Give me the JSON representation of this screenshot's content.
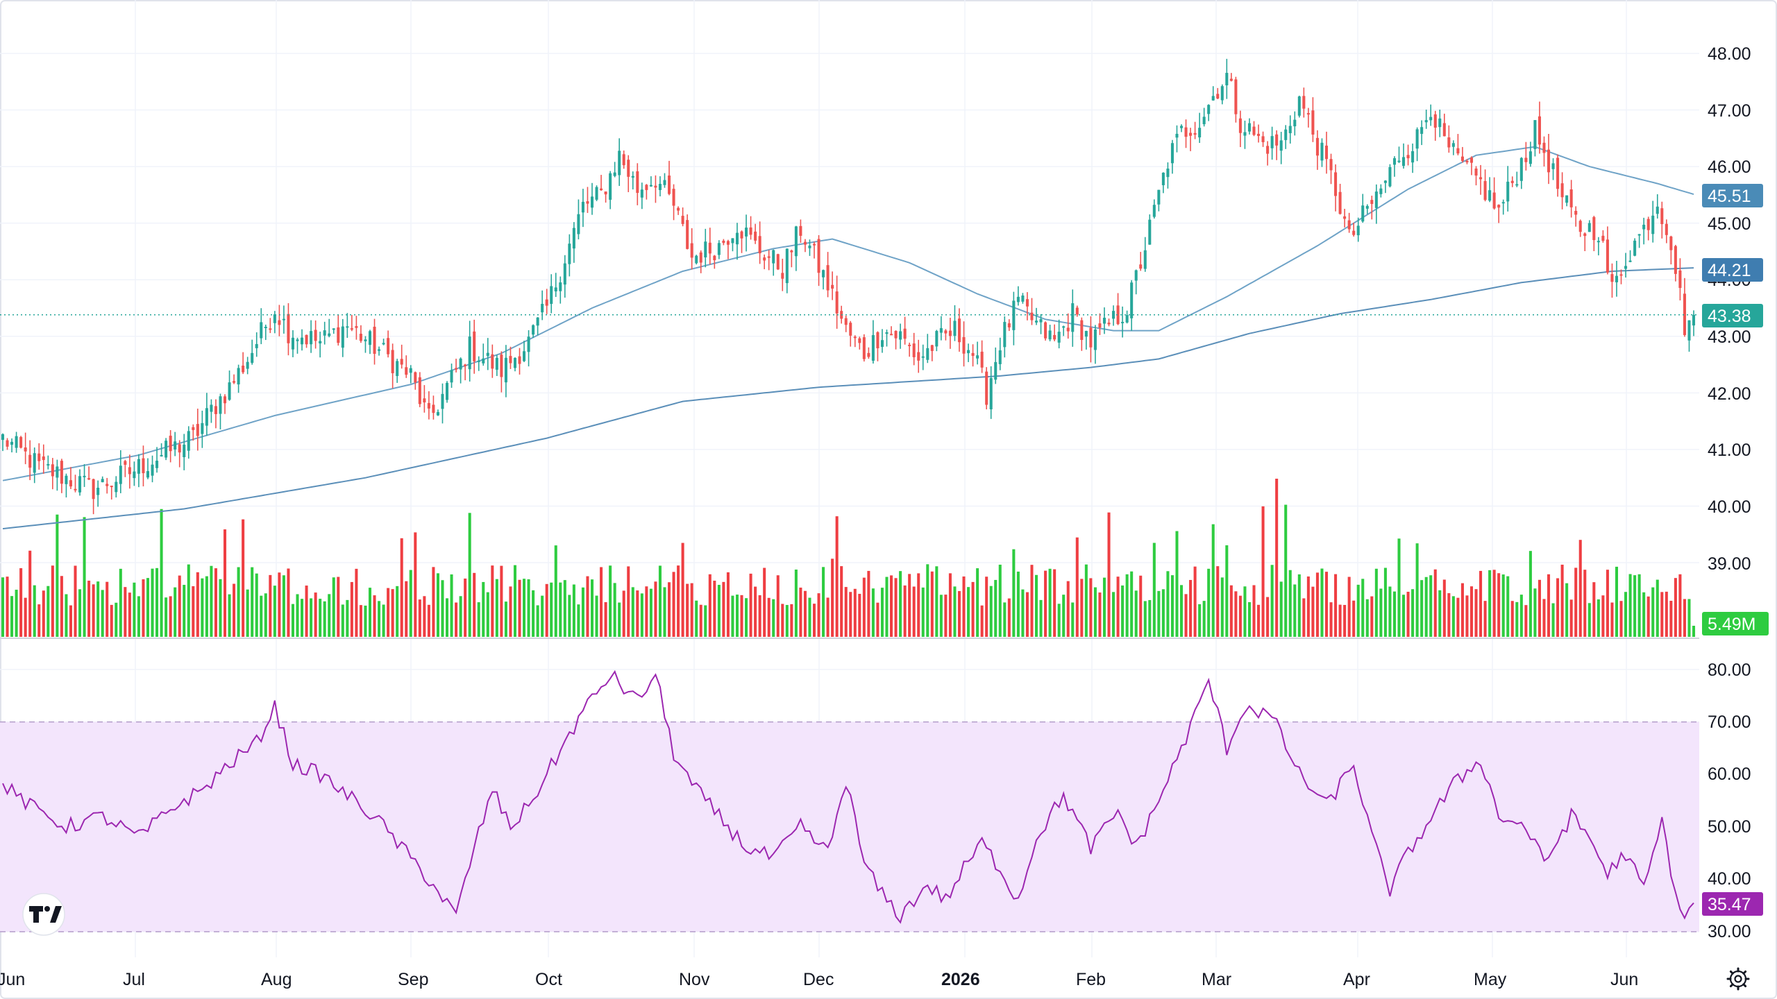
{
  "colors": {
    "up": "#26a69a",
    "down": "#ef5350",
    "vol_up": "#2ecc40",
    "vol_down": "#ef3e42",
    "ma50": "#6fa3c7",
    "ma200": "#5b8fb9",
    "rsi_line": "#9c27b0",
    "rsi_band": "#f3e5fc",
    "last_price_badge": "#26a69a",
    "ma50_badge": "#4a8bb7",
    "ma200_badge": "#3f7db0",
    "volume_badge": "#2ecc40",
    "rsi_badge": "#9c27b0",
    "grid": "#f0f3fa"
  },
  "price_axis": {
    "ticks": [
      "48.00",
      "47.00",
      "46.00",
      "45.00",
      "44.00",
      "43.00",
      "42.00",
      "41.00",
      "40.00",
      "39.00"
    ]
  },
  "rsi_axis": {
    "ticks": [
      "80.00",
      "70.00",
      "60.00",
      "50.00",
      "40.00",
      "30.00"
    ]
  },
  "badges": {
    "ma50": "45.51",
    "ma200": "44.21",
    "last_price": "43.38",
    "volume": "5.49M",
    "rsi": "35.47"
  },
  "time_axis": {
    "labels": [
      {
        "text": "Jun",
        "bold": false
      },
      {
        "text": "Jul",
        "bold": false
      },
      {
        "text": "Aug",
        "bold": false
      },
      {
        "text": "Sep",
        "bold": false
      },
      {
        "text": "Oct",
        "bold": false
      },
      {
        "text": "Nov",
        "bold": false
      },
      {
        "text": "Dec",
        "bold": false
      },
      {
        "text": "2026",
        "bold": true
      },
      {
        "text": "Feb",
        "bold": false
      },
      {
        "text": "Mar",
        "bold": false
      },
      {
        "text": "Apr",
        "bold": false
      },
      {
        "text": "May",
        "bold": false
      },
      {
        "text": "Jun",
        "bold": false
      }
    ]
  },
  "icons": {
    "logo": "tradingview-logo-icon",
    "settings": "settings-gear-icon"
  },
  "chart_data": {
    "type": "candlestick",
    "title": "",
    "x_range": [
      "2025-06",
      "2026-06"
    ],
    "price_ylim": [
      39.0,
      48.0
    ],
    "rsi_ylim": [
      30,
      80
    ],
    "rsi_band": [
      30,
      70
    ],
    "last_price": 43.38,
    "ma50_last": 45.51,
    "ma200_last": 44.21,
    "volume_last": "5.49M",
    "rsi_last": 35.47,
    "price_keypoints": [
      [
        0,
        41.2
      ],
      [
        8,
        40.7
      ],
      [
        14,
        40.5
      ],
      [
        20,
        40.3
      ],
      [
        28,
        40.6
      ],
      [
        35,
        40.9
      ],
      [
        42,
        41.2
      ],
      [
        46,
        41.7
      ],
      [
        50,
        42.1
      ],
      [
        54,
        42.6
      ],
      [
        60,
        43.5
      ],
      [
        63,
        43.1
      ],
      [
        70,
        42.9
      ],
      [
        76,
        43.2
      ],
      [
        84,
        42.7
      ],
      [
        90,
        42.3
      ],
      [
        94,
        41.5
      ],
      [
        98,
        42.1
      ],
      [
        103,
        42.8
      ],
      [
        110,
        42.4
      ],
      [
        116,
        42.9
      ],
      [
        120,
        43.5
      ],
      [
        124,
        44.4
      ],
      [
        128,
        45.3
      ],
      [
        132,
        45.5
      ],
      [
        136,
        46.2
      ],
      [
        140,
        45.6
      ],
      [
        144,
        45.8
      ],
      [
        148,
        45.3
      ],
      [
        152,
        44.4
      ],
      [
        158,
        44.6
      ],
      [
        162,
        45.0
      ],
      [
        166,
        44.6
      ],
      [
        172,
        44.2
      ],
      [
        176,
        44.9
      ],
      [
        179,
        44.4
      ],
      [
        182,
        43.9
      ],
      [
        186,
        43.1
      ],
      [
        190,
        42.7
      ],
      [
        194,
        43.1
      ],
      [
        198,
        43.0
      ],
      [
        202,
        42.6
      ],
      [
        206,
        42.9
      ],
      [
        210,
        43.1
      ],
      [
        214,
        42.7
      ],
      [
        217,
        42.0
      ],
      [
        220,
        42.9
      ],
      [
        224,
        43.6
      ],
      [
        228,
        43.2
      ],
      [
        232,
        42.9
      ],
      [
        236,
        43.4
      ],
      [
        240,
        42.9
      ],
      [
        244,
        43.2
      ],
      [
        248,
        43.5
      ],
      [
        251,
        44.3
      ],
      [
        254,
        45.2
      ],
      [
        257,
        46.1
      ],
      [
        260,
        46.6
      ],
      [
        264,
        46.8
      ],
      [
        268,
        47.4
      ],
      [
        270,
        47.6
      ],
      [
        273,
        46.8
      ],
      [
        278,
        46.4
      ],
      [
        282,
        46.4
      ],
      [
        286,
        47.2
      ],
      [
        290,
        46.4
      ],
      [
        294,
        45.6
      ],
      [
        297,
        44.7
      ],
      [
        300,
        45.1
      ],
      [
        304,
        45.6
      ],
      [
        308,
        46.2
      ],
      [
        312,
        46.5
      ],
      [
        315,
        47.1
      ],
      [
        318,
        46.4
      ],
      [
        322,
        46.0
      ],
      [
        326,
        45.7
      ],
      [
        330,
        45.2
      ],
      [
        334,
        45.9
      ],
      [
        338,
        46.6
      ],
      [
        341,
        46.1
      ],
      [
        344,
        45.4
      ],
      [
        348,
        44.9
      ],
      [
        352,
        44.9
      ],
      [
        355,
        43.8
      ],
      [
        358,
        44.4
      ],
      [
        362,
        44.9
      ],
      [
        365,
        45.4
      ],
      [
        368,
        44.7
      ],
      [
        371,
        43.2
      ],
      [
        373,
        43.38
      ]
    ],
    "ma50_keypoints": [
      [
        0,
        40.45
      ],
      [
        30,
        40.9
      ],
      [
        60,
        41.6
      ],
      [
        90,
        42.15
      ],
      [
        110,
        42.7
      ],
      [
        130,
        43.5
      ],
      [
        150,
        44.15
      ],
      [
        170,
        44.55
      ],
      [
        183,
        44.72
      ],
      [
        200,
        44.3
      ],
      [
        215,
        43.75
      ],
      [
        230,
        43.3
      ],
      [
        245,
        43.1
      ],
      [
        255,
        43.1
      ],
      [
        270,
        43.7
      ],
      [
        290,
        44.6
      ],
      [
        310,
        45.6
      ],
      [
        325,
        46.2
      ],
      [
        338,
        46.35
      ],
      [
        350,
        46.0
      ],
      [
        365,
        45.7
      ],
      [
        373,
        45.51
      ]
    ],
    "ma200_keypoints": [
      [
        0,
        39.6
      ],
      [
        40,
        39.95
      ],
      [
        80,
        40.5
      ],
      [
        120,
        41.2
      ],
      [
        150,
        41.85
      ],
      [
        180,
        42.1
      ],
      [
        200,
        42.2
      ],
      [
        220,
        42.3
      ],
      [
        240,
        42.45
      ],
      [
        255,
        42.6
      ],
      [
        275,
        43.05
      ],
      [
        295,
        43.4
      ],
      [
        315,
        43.65
      ],
      [
        335,
        43.95
      ],
      [
        355,
        44.15
      ],
      [
        373,
        44.21
      ]
    ],
    "rsi_keypoints": [
      [
        0,
        58
      ],
      [
        6,
        54
      ],
      [
        14,
        50
      ],
      [
        22,
        52
      ],
      [
        30,
        48
      ],
      [
        38,
        54
      ],
      [
        44,
        57
      ],
      [
        50,
        62
      ],
      [
        56,
        66
      ],
      [
        60,
        73
      ],
      [
        64,
        62
      ],
      [
        70,
        60
      ],
      [
        76,
        56
      ],
      [
        82,
        52
      ],
      [
        88,
        46
      ],
      [
        94,
        40
      ],
      [
        100,
        33
      ],
      [
        104,
        46
      ],
      [
        108,
        57
      ],
      [
        112,
        50
      ],
      [
        116,
        54
      ],
      [
        120,
        60
      ],
      [
        124,
        66
      ],
      [
        128,
        72
      ],
      [
        134,
        79
      ],
      [
        140,
        74
      ],
      [
        144,
        79
      ],
      [
        148,
        64
      ],
      [
        152,
        58
      ],
      [
        158,
        52
      ],
      [
        164,
        46
      ],
      [
        170,
        44
      ],
      [
        176,
        50
      ],
      [
        182,
        45
      ],
      [
        186,
        59
      ],
      [
        190,
        43
      ],
      [
        194,
        37
      ],
      [
        198,
        33
      ],
      [
        204,
        39
      ],
      [
        208,
        36
      ],
      [
        212,
        42
      ],
      [
        216,
        47
      ],
      [
        220,
        42
      ],
      [
        224,
        36
      ],
      [
        228,
        48
      ],
      [
        234,
        56
      ],
      [
        240,
        46
      ],
      [
        246,
        53
      ],
      [
        250,
        46
      ],
      [
        256,
        57
      ],
      [
        262,
        69
      ],
      [
        266,
        78
      ],
      [
        270,
        65
      ],
      [
        274,
        73
      ],
      [
        280,
        71
      ],
      [
        286,
        60
      ],
      [
        292,
        54
      ],
      [
        298,
        62
      ],
      [
        302,
        48
      ],
      [
        306,
        38
      ],
      [
        310,
        45
      ],
      [
        316,
        53
      ],
      [
        320,
        58
      ],
      [
        326,
        63
      ],
      [
        330,
        52
      ],
      [
        336,
        50
      ],
      [
        340,
        43
      ],
      [
        346,
        52
      ],
      [
        350,
        48
      ],
      [
        354,
        41
      ],
      [
        358,
        45
      ],
      [
        362,
        38
      ],
      [
        366,
        51
      ],
      [
        370,
        33
      ],
      [
        373,
        35.5
      ]
    ]
  }
}
